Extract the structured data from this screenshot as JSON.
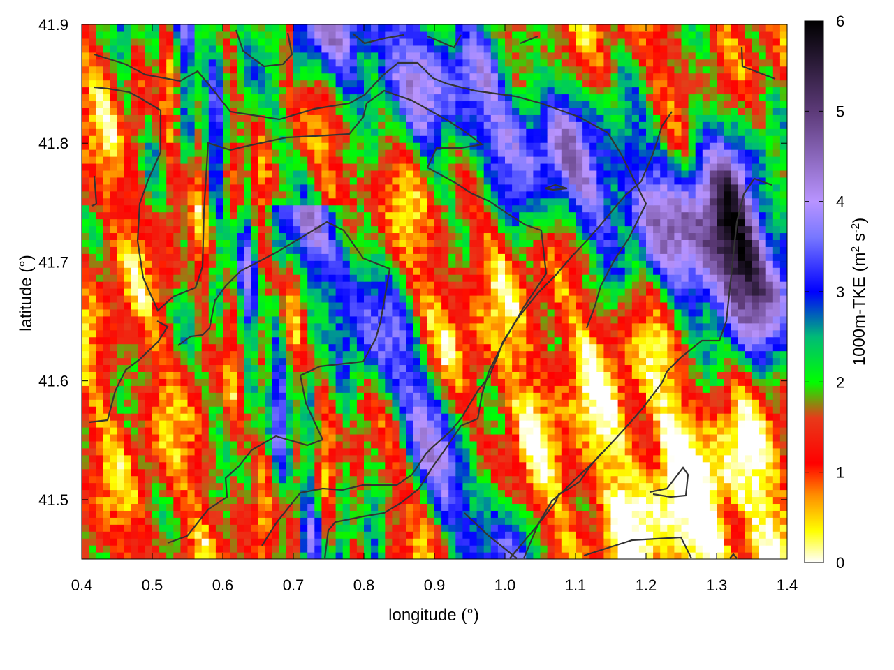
{
  "chart_data": {
    "type": "heatmap",
    "title": "",
    "xlabel": "longitude (°)",
    "ylabel": "latitude (°)",
    "colorbar_label": "1000m-TKE (m² s⁻²)",
    "colorbar_label_parts": {
      "base": "1000m-TKE (m",
      "sup1": "2",
      "mid": " s",
      "sup2": "-2",
      "end": ")"
    },
    "xlim": [
      0.4,
      1.4
    ],
    "ylim": [
      41.45,
      41.9
    ],
    "clim": [
      0,
      6
    ],
    "x_ticks": [
      "0.4",
      "0.5",
      "0.6",
      "0.7",
      "0.8",
      "0.9",
      "1.0",
      "1.1",
      "1.2",
      "1.3",
      "1.4"
    ],
    "y_ticks": [
      "41.5",
      "41.6",
      "41.7",
      "41.8",
      "41.9"
    ],
    "colorbar_ticks": [
      "0",
      "1",
      "2",
      "3",
      "4",
      "5",
      "6"
    ],
    "colormap": [
      [
        0.0,
        "#ffffff"
      ],
      [
        0.35,
        "#ffff00"
      ],
      [
        0.75,
        "#ff8c00"
      ],
      [
        1.1,
        "#ff0000"
      ],
      [
        1.6,
        "#e83a1a"
      ],
      [
        2.0,
        "#00ff00"
      ],
      [
        2.5,
        "#00bb77"
      ],
      [
        3.0,
        "#0000ff"
      ],
      [
        3.6,
        "#7777ff"
      ],
      [
        4.0,
        "#b894ff"
      ],
      [
        5.0,
        "#5c3a78"
      ],
      [
        6.0,
        "#000000"
      ]
    ],
    "grid": false,
    "contour_color": "#333333",
    "field_description": "Gridded TKE over the domain: high values (3-6) in bands in the northeast and southwest-central, low values (<1) in the southeast corner, intermediate (1-2) elsewhere."
  }
}
